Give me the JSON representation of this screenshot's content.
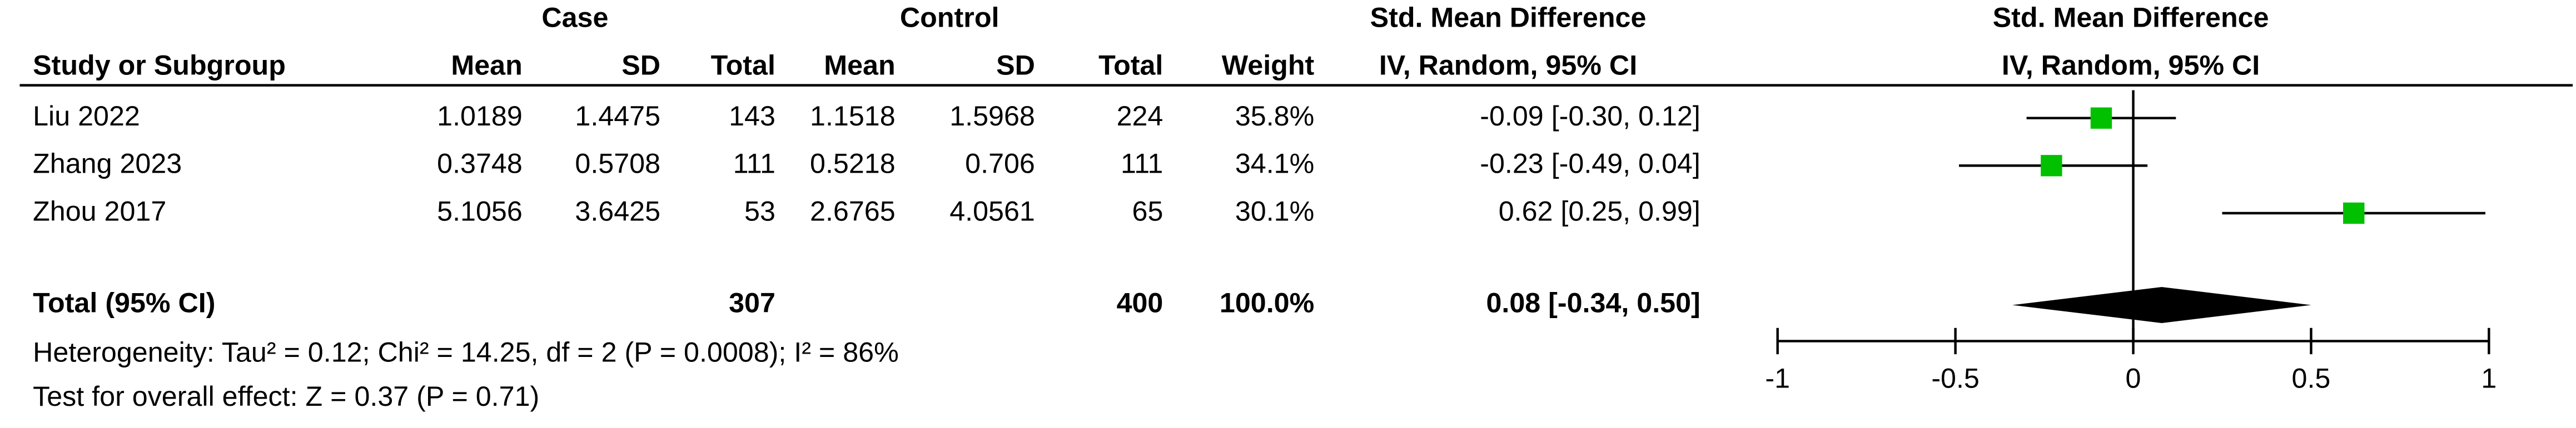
{
  "table": {
    "group_headers": [
      "Case",
      "Control",
      "Std. Mean Difference"
    ],
    "columns": [
      "Study or Subgroup",
      "Mean",
      "SD",
      "Total",
      "Mean",
      "SD",
      "Total",
      "Weight",
      "IV, Random, 95% CI"
    ],
    "rows": [
      [
        "Liu 2022",
        "1.0189",
        "1.4475",
        "143",
        "1.1518",
        "1.5968",
        "224",
        "35.8%",
        "-0.09 [-0.30, 0.12]"
      ],
      [
        "Zhang 2023",
        "0.3748",
        "0.5708",
        "111",
        "0.5218",
        "0.706",
        "111",
        "34.1%",
        "-0.23 [-0.49, 0.04]"
      ],
      [
        "Zhou 2017",
        "5.1056",
        "3.6425",
        "53",
        "2.6765",
        "4.0561",
        "65",
        "30.1%",
        "0.62 [0.25, 0.99]"
      ]
    ],
    "total_row": {
      "label": "Total (95% CI)",
      "case_total": "307",
      "control_total": "400",
      "weight": "100.0%",
      "ci": "0.08 [-0.34, 0.50]"
    },
    "heterogeneity": "Heterogeneity: Tau² = 0.12; Chi² = 14.25, df = 2 (P = 0.0008); I² = 86%",
    "overall_effect": "Test for overall effect: Z = 0.37 (P = 0.71)"
  },
  "chart_data": {
    "type": "forest",
    "title": "Std. Mean Difference",
    "subtitle": "IV, Random, 95% CI",
    "estimates": [
      -0.09,
      -0.23,
      0.62
    ],
    "lower": [
      -0.3,
      -0.49,
      0.25
    ],
    "upper": [
      0.12,
      0.04,
      0.99
    ],
    "total": {
      "estimate": 0.08,
      "lower": -0.34,
      "upper": 0.5
    },
    "xlim": [
      -1,
      1
    ],
    "xticks": [
      -1,
      -0.5,
      0,
      0.5,
      1
    ],
    "color": "#00c000"
  }
}
